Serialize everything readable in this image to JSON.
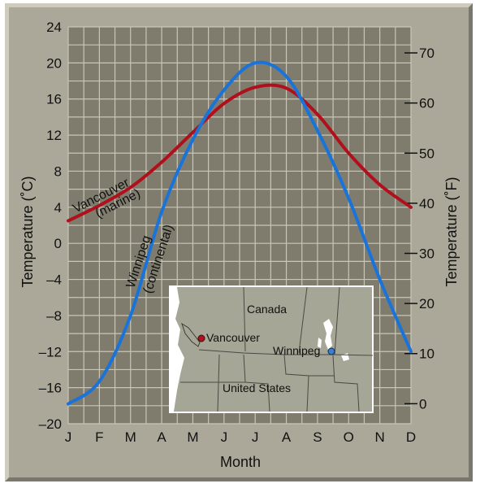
{
  "chart_data": {
    "type": "line",
    "xlabel": "Month",
    "ylabel_left": "Temperature (˚C)",
    "ylabel_right": "Temperature (˚F)",
    "categories": [
      "J",
      "F",
      "M",
      "A",
      "M",
      "J",
      "J",
      "A",
      "S",
      "O",
      "N",
      "D"
    ],
    "ylim_c": [
      -20,
      24
    ],
    "yticks_c": [
      24,
      20,
      16,
      12,
      8,
      4,
      0,
      "–4",
      "–8",
      "–12",
      "–16",
      "–20"
    ],
    "yticks_f": [
      70,
      60,
      50,
      40,
      30,
      20,
      10,
      0
    ],
    "grid": true,
    "series": [
      {
        "name": "Vancouver (marine)",
        "label_line1": "Vancouver",
        "label_line2": "(marine)",
        "color": "#b0101c",
        "x": [
          0,
          1,
          2,
          3,
          4,
          5,
          6,
          7,
          8,
          9,
          10,
          11
        ],
        "values": [
          2.5,
          4.2,
          6.2,
          9.0,
          12.3,
          15.5,
          17.3,
          17.2,
          14.3,
          10.0,
          6.5,
          4.0
        ]
      },
      {
        "name": "Winnipeg (continental)",
        "label_line1": "Winnipeg",
        "label_line2": "(continental)",
        "color": "#1a73d9",
        "x": [
          0,
          1,
          2,
          3,
          4,
          5,
          6,
          7,
          8,
          9,
          10,
          11
        ],
        "values": [
          -17.8,
          -15.3,
          -8.0,
          3.5,
          11.5,
          17.0,
          20.0,
          18.5,
          12.5,
          5.0,
          -4.0,
          -12.0
        ]
      }
    ]
  },
  "map": {
    "labels": {
      "canada": "Canada",
      "united_states": "United States",
      "vancouver": "Vancouver",
      "winnipeg": "Winnipeg"
    },
    "colors": {
      "land": "#a6a696",
      "water": "#ffffff",
      "vancouver_dot": "#b0101c",
      "winnipeg_dot": "#3a7fd0"
    }
  },
  "colors": {
    "plot_bg": "#7f7c6e",
    "grid": "#c9c6b7",
    "frame": "#aba899"
  }
}
